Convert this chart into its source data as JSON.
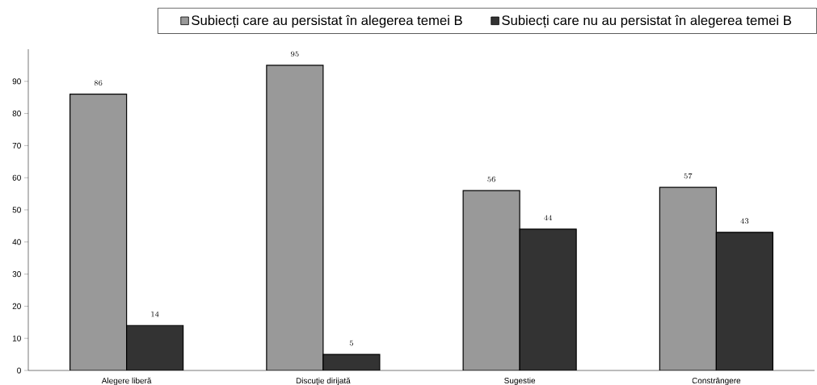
{
  "chart_data": {
    "type": "bar",
    "categories": [
      "Alegere liberă",
      "Discuţie dirijată",
      "Sugestie",
      "Constrângere"
    ],
    "series": [
      {
        "name": "Subiecți care au persistat în alegerea temei B",
        "color": "#999999",
        "values": [
          86,
          95,
          56,
          57
        ]
      },
      {
        "name": "Subiecți care nu au persistat în alegerea temei B",
        "color": "#333333",
        "values": [
          14,
          5,
          44,
          43
        ]
      }
    ],
    "ylim": [
      0,
      100
    ],
    "yticks": [
      0,
      10,
      20,
      30,
      40,
      50,
      60,
      70,
      80,
      90
    ],
    "data_labels": true,
    "legend": "top",
    "grid": false
  }
}
